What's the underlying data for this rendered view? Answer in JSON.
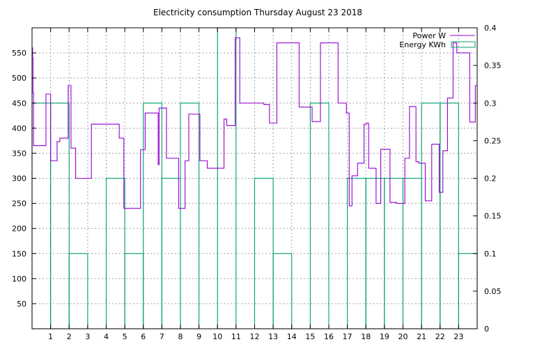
{
  "chart_data": {
    "type": "line",
    "title": "Electricity consumption Thursday August 23 2018",
    "xlabel": "",
    "ylabel": "",
    "y2label": "",
    "xlim": [
      0,
      24
    ],
    "ylim": [
      0,
      600
    ],
    "y2lim": [
      0,
      0.4
    ],
    "x_ticks": [
      1,
      2,
      3,
      4,
      5,
      6,
      7,
      8,
      9,
      10,
      11,
      12,
      13,
      14,
      15,
      16,
      17,
      18,
      19,
      20,
      21,
      22,
      23
    ],
    "y_ticks": [
      50,
      100,
      150,
      200,
      250,
      300,
      350,
      400,
      450,
      500,
      550
    ],
    "y2_ticks": [
      0,
      0.05,
      0.1,
      0.15,
      0.2,
      0.25,
      0.3,
      0.35,
      0.4
    ],
    "grid": true,
    "legend_position": "top-right",
    "colors": {
      "power": "#9400d3",
      "energy": "#009e73",
      "grid": "#a0a0a0",
      "axis": "#000000"
    },
    "series": [
      {
        "name": "Power W",
        "axis": "y",
        "style": "steps",
        "x": [
          0,
          0.03,
          0.05,
          0.08,
          0.12,
          0.75,
          1.0,
          1.35,
          1.5,
          1.95,
          2.1,
          2.35,
          2.45,
          3.2,
          4.0,
          4.7,
          4.95,
          5.6,
          5.85,
          6.1,
          6.8,
          6.85,
          7.25,
          7.9,
          8.25,
          8.45,
          9.05,
          9.25,
          9.45,
          10.35,
          10.5,
          10.95,
          11.2,
          12.5,
          12.7,
          12.8,
          13.2,
          14.4,
          14.5,
          15.1,
          15.55,
          16.5,
          16.95,
          17.1,
          17.25,
          17.55,
          17.9,
          18.05,
          18.15,
          18.55,
          18.8,
          19.3,
          19.65,
          20.1,
          20.35,
          20.7,
          20.85,
          21.2,
          21.55,
          21.95,
          22.15,
          22.4,
          22.7,
          22.9,
          23.3,
          23.6,
          23.9
        ],
        "values": [
          560,
          540,
          470,
          365,
          365,
          468,
          335,
          373,
          380,
          485,
          360,
          300,
          300,
          408,
          408,
          380,
          240,
          240,
          357,
          430,
          327,
          440,
          340,
          240,
          335,
          428,
          335,
          335,
          320,
          418,
          405,
          580,
          450,
          447,
          447,
          410,
          570,
          442,
          442,
          413,
          570,
          450,
          430,
          245,
          305,
          330,
          408,
          410,
          320,
          250,
          358,
          252,
          250,
          340,
          443,
          333,
          330,
          255,
          368,
          272,
          355,
          460,
          570,
          550,
          550,
          412,
          485
        ]
      },
      {
        "name": "Energy KWh",
        "axis": "y2",
        "style": "boxes",
        "x": [
          0,
          1,
          2,
          3,
          4,
          5,
          6,
          7,
          8,
          9,
          10,
          11,
          12,
          13,
          14,
          15,
          16,
          17,
          18,
          19,
          20,
          21,
          22,
          23
        ],
        "values": [
          0.3,
          0.3,
          0.1,
          0,
          0.2,
          0.1,
          0.3,
          0.2,
          0.3,
          0,
          0.4,
          0,
          0.2,
          0.1,
          0,
          0.3,
          0,
          0.2,
          0.2,
          0.2,
          0.2,
          0.3,
          0.3,
          0.1
        ]
      }
    ]
  }
}
